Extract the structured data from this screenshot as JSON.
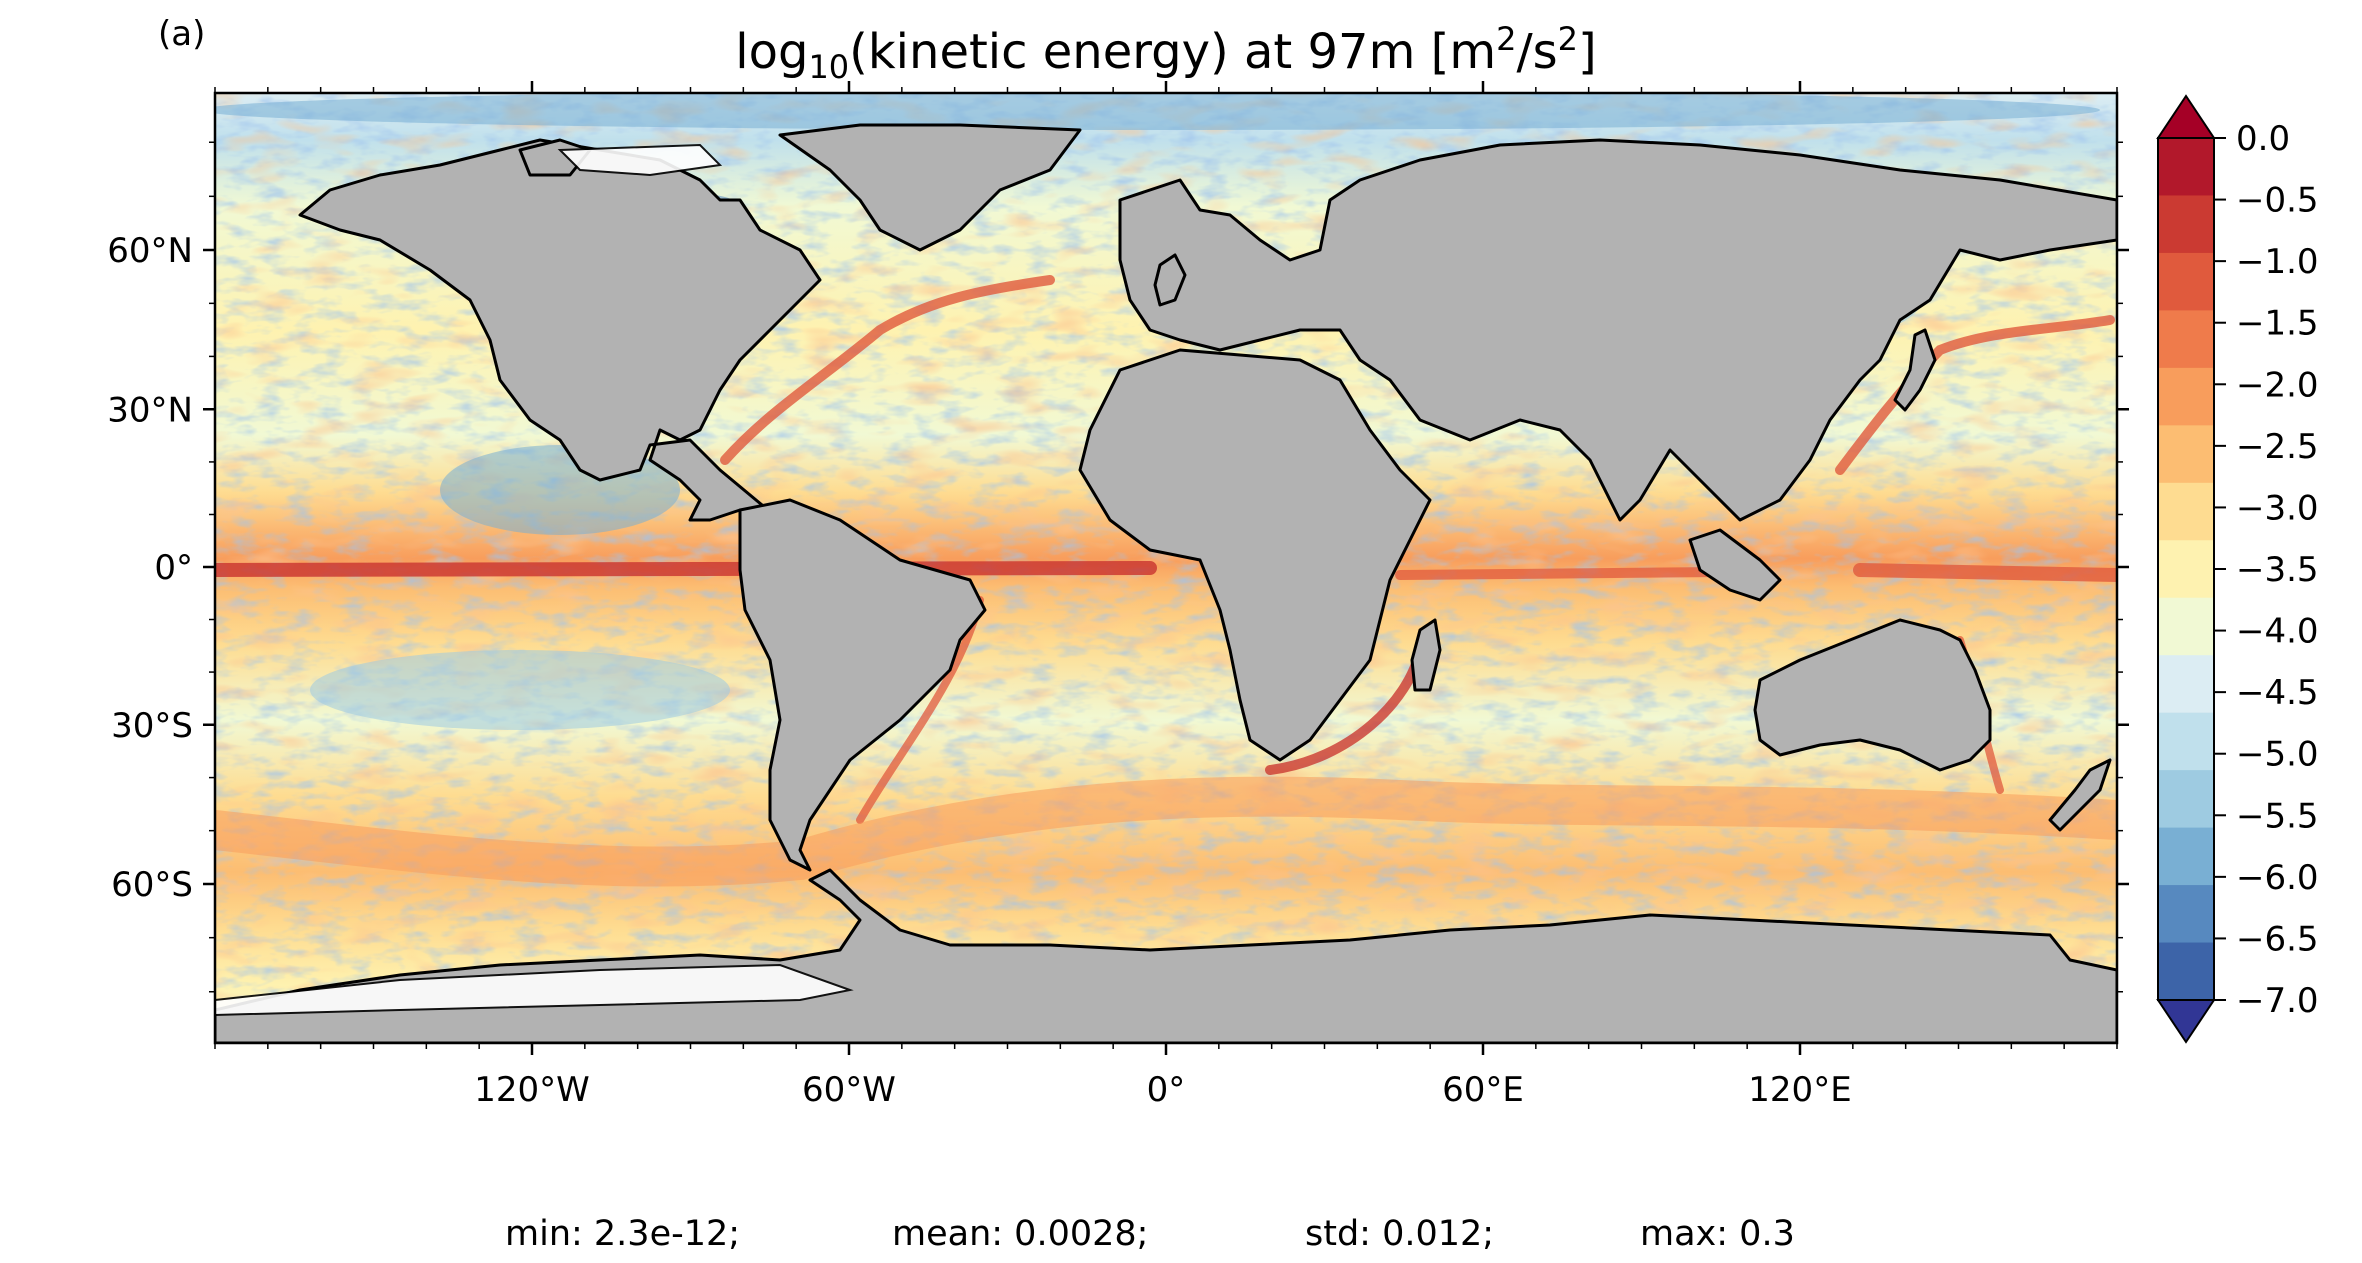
{
  "figure": {
    "panel_label": "(a)",
    "title": {
      "prefix": "log",
      "subscript": "10",
      "middle": "(kinetic energy) at 97m [m",
      "sup1": "2",
      "mid2": "/s",
      "sup2": "2",
      "suffix": "]"
    },
    "land_color": "#b2b2b2",
    "missing_color": "#ffffff",
    "coastline_color": "#000000"
  },
  "axes": {
    "lon_range": [
      -180,
      180
    ],
    "lat_range": [
      -90,
      90
    ],
    "projection": "equirectangular (Mercator-like latitude stretch)",
    "x_ticks": [
      {
        "value": -120,
        "label": "120°W"
      },
      {
        "value": -60,
        "label": "60°W"
      },
      {
        "value": 0,
        "label": "0°"
      },
      {
        "value": 60,
        "label": "60°E"
      },
      {
        "value": 120,
        "label": "120°E"
      }
    ],
    "y_ticks": [
      {
        "value": 60,
        "label": "60°N"
      },
      {
        "value": 30,
        "label": "30°N"
      },
      {
        "value": 0,
        "label": "0°"
      },
      {
        "value": -30,
        "label": "30°S"
      },
      {
        "value": -60,
        "label": "60°S"
      }
    ]
  },
  "colorbar": {
    "min": -7.0,
    "max": 0.0,
    "extend": "both",
    "levels": [
      {
        "value": 0.0,
        "label": "0.0"
      },
      {
        "value": -0.5,
        "label": "−0.5"
      },
      {
        "value": -1.0,
        "label": "−1.0"
      },
      {
        "value": -1.5,
        "label": "−1.5"
      },
      {
        "value": -2.0,
        "label": "−2.0"
      },
      {
        "value": -2.5,
        "label": "−2.5"
      },
      {
        "value": -3.0,
        "label": "−3.0"
      },
      {
        "value": -3.5,
        "label": "−3.5"
      },
      {
        "value": -4.0,
        "label": "−4.0"
      },
      {
        "value": -4.5,
        "label": "−4.5"
      },
      {
        "value": -5.0,
        "label": "−5.0"
      },
      {
        "value": -5.5,
        "label": "−5.5"
      },
      {
        "value": -6.0,
        "label": "−6.0"
      },
      {
        "value": -6.5,
        "label": "−6.5"
      },
      {
        "value": -7.0,
        "label": "−7.0"
      }
    ],
    "colors": [
      "#b2182b",
      "#cb3a32",
      "#e05a3d",
      "#ef7b4b",
      "#f89d5c",
      "#fcbd72",
      "#fedc91",
      "#fef2b0",
      "#f1f9d4",
      "#dcedf3",
      "#c0e0ec",
      "#9ecbe1",
      "#79afd3",
      "#5789bf",
      "#3d64a8"
    ],
    "over_color": "#a50026",
    "under_color": "#313695",
    "cmap": "RdYlBu_r"
  },
  "stats": {
    "min": "min: 2.3e-12;",
    "mean": "mean: 0.0028;",
    "std": "std: 0.012;",
    "max": "max: 0.3"
  }
}
